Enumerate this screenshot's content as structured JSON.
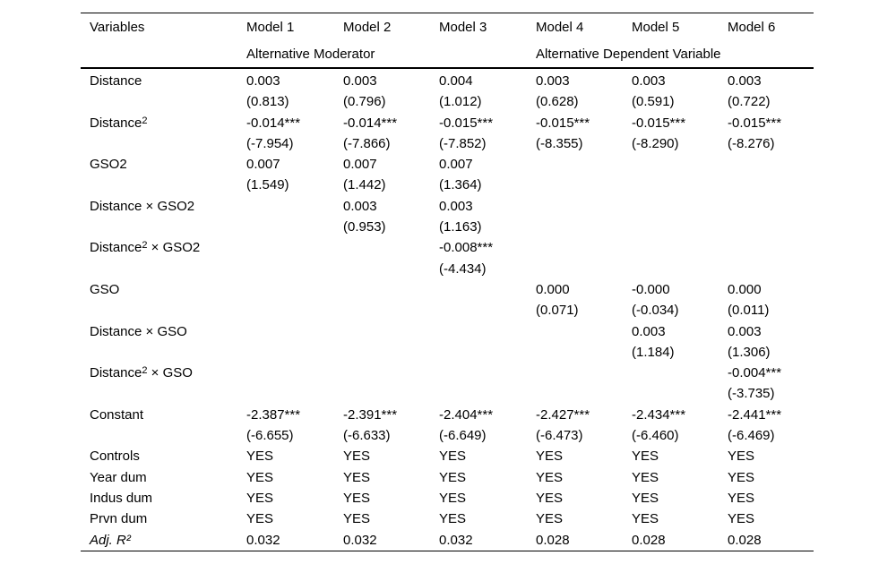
{
  "table": {
    "header": {
      "variables_label": "Variables",
      "models": [
        "Model 1",
        "Model 2",
        "Model 3",
        "Model 4",
        "Model 5",
        "Model 6"
      ],
      "group_left": "Alternative Moderator",
      "group_right": "Alternative Dependent Variable"
    },
    "coef_rows": [
      {
        "label": "Distance",
        "coef": [
          "0.003",
          "0.003",
          "0.004",
          "0.003",
          "0.003",
          "0.003"
        ],
        "t": [
          "(0.813)",
          "(0.796)",
          "(1.012)",
          "(0.628)",
          "(0.591)",
          "(0.722)"
        ]
      },
      {
        "label": "Distance²",
        "coef": [
          "-0.014***",
          "-0.014***",
          "-0.015***",
          "-0.015***",
          "-0.015***",
          "-0.015***"
        ],
        "t": [
          "(-7.954)",
          "(-7.866)",
          "(-7.852)",
          "(-8.355)",
          "(-8.290)",
          "(-8.276)"
        ]
      },
      {
        "label": "GSO2",
        "coef": [
          "0.007",
          "0.007",
          "0.007",
          "",
          "",
          ""
        ],
        "t": [
          "(1.549)",
          "(1.442)",
          "(1.364)",
          "",
          "",
          ""
        ]
      },
      {
        "label": "Distance × GSO2",
        "coef": [
          "",
          "0.003",
          "0.003",
          "",
          "",
          ""
        ],
        "t": [
          "",
          "(0.953)",
          "(1.163)",
          "",
          "",
          ""
        ]
      },
      {
        "label": "Distance² × GSO2",
        "coef": [
          "",
          "",
          "-0.008***",
          "",
          "",
          ""
        ],
        "t": [
          "",
          "",
          "(-4.434)",
          "",
          "",
          ""
        ]
      },
      {
        "label": "GSO",
        "coef": [
          "",
          "",
          "",
          "0.000",
          "-0.000",
          "0.000"
        ],
        "t": [
          "",
          "",
          "",
          "(0.071)",
          "(-0.034)",
          "(0.011)"
        ]
      },
      {
        "label": "Distance × GSO",
        "coef": [
          "",
          "",
          "",
          "",
          "0.003",
          "0.003"
        ],
        "t": [
          "",
          "",
          "",
          "",
          "(1.184)",
          "(1.306)"
        ]
      },
      {
        "label": "Distance² × GSO",
        "coef": [
          "",
          "",
          "",
          "",
          "",
          "-0.004***"
        ],
        "t": [
          "",
          "",
          "",
          "",
          "",
          "(-3.735)"
        ]
      },
      {
        "label": "Constant",
        "coef": [
          "-2.387***",
          "-2.391***",
          "-2.404***",
          "-2.427***",
          "-2.434***",
          "-2.441***"
        ],
        "t": [
          "(-6.655)",
          "(-6.633)",
          "(-6.649)",
          "(-6.473)",
          "(-6.460)",
          "(-6.469)"
        ]
      }
    ],
    "single_rows": [
      {
        "label": "Controls",
        "italic": false,
        "values": [
          "YES",
          "YES",
          "YES",
          "YES",
          "YES",
          "YES"
        ]
      },
      {
        "label": "Year dum",
        "italic": false,
        "values": [
          "YES",
          "YES",
          "YES",
          "YES",
          "YES",
          "YES"
        ]
      },
      {
        "label": "Indus dum",
        "italic": false,
        "values": [
          "YES",
          "YES",
          "YES",
          "YES",
          "YES",
          "YES"
        ]
      },
      {
        "label": "Prvn dum",
        "italic": false,
        "values": [
          "YES",
          "YES",
          "YES",
          "YES",
          "YES",
          "YES"
        ]
      },
      {
        "label": "Adj. R²",
        "italic": true,
        "values": [
          "0.032",
          "0.032",
          "0.032",
          "0.028",
          "0.028",
          "0.028"
        ]
      }
    ],
    "colors": {
      "text": "#000000",
      "background": "#ffffff",
      "rule": "#000000"
    }
  }
}
